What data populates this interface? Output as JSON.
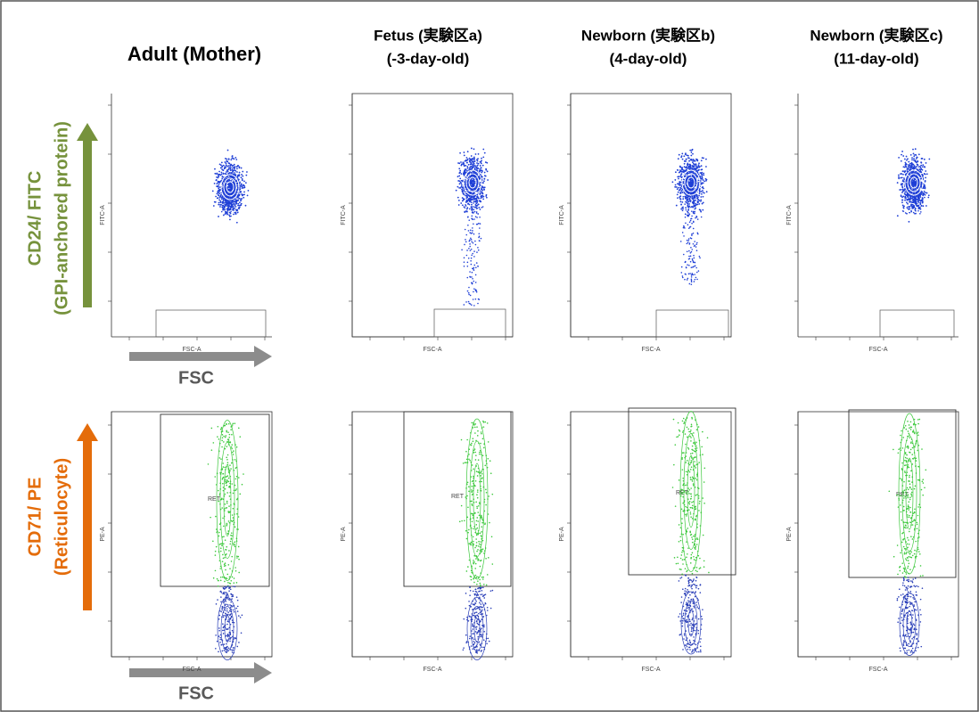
{
  "header": {
    "columns": [
      {
        "title": "Adult (Mother)"
      },
      {
        "title": "Fetus (実験区a)",
        "subtitle": "(-3-day-old)"
      },
      {
        "title": "Newborn (実験区b)",
        "subtitle": "(4-day-old)"
      },
      {
        "title": "Newborn (実験区c)",
        "subtitle": "(11-day-old)"
      }
    ]
  },
  "rows": [
    {
      "label": "CD24/ FITC",
      "sublabel": "(GPI-anchored protein)",
      "x_axis": "FSC",
      "plot_y_axis": "FITC-A",
      "plot_x_axis": "FSC-A"
    },
    {
      "label": "CD71/ PE",
      "sublabel": "(Reticulocyte)",
      "x_axis": "FSC",
      "plot_y_axis": "PE-A",
      "plot_x_axis": "FSC-A",
      "gate_label": "RET"
    }
  ]
}
